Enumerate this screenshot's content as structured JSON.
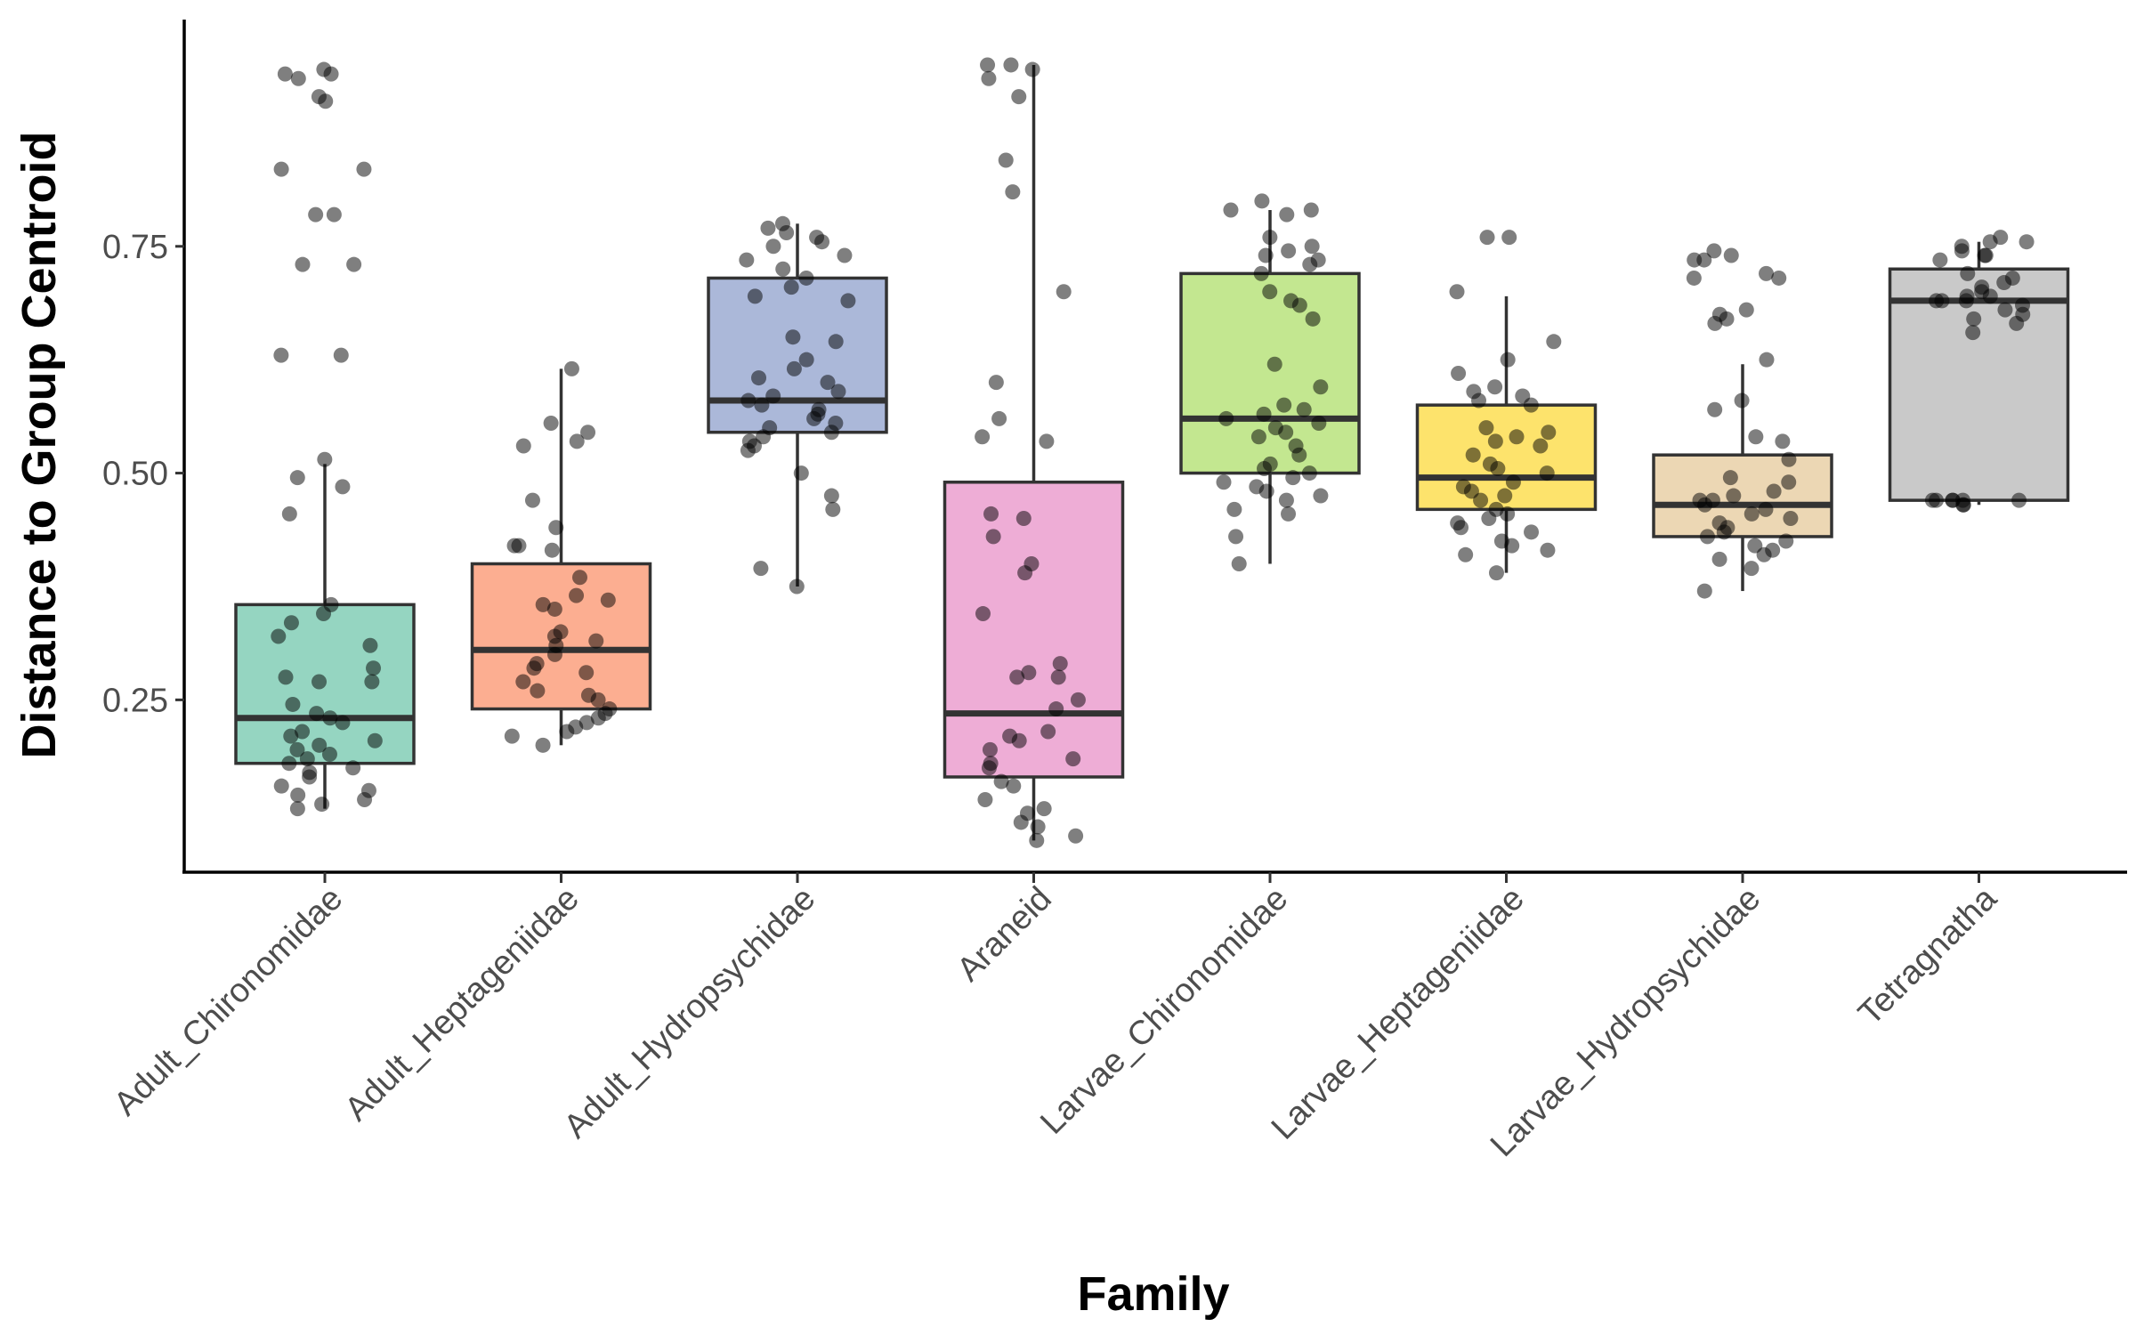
{
  "chart_data": {
    "type": "boxplot",
    "xlabel": "Family",
    "ylabel": "Distance to Group Centroid",
    "ylim": [
      0.06,
      1.0
    ],
    "yticks": [
      0.25,
      0.5,
      0.75
    ],
    "ytick_labels": [
      "0.25",
      "0.50",
      "0.75"
    ],
    "grid": false,
    "legend": "none",
    "categories": [
      "Adult_Chironomidae",
      "Adult_Heptageniidae",
      "Adult_Hydropsychidae",
      "Araneid",
      "Larvae_Chironomidae",
      "Larvae_Heptageniidae",
      "Larvae_Hydropsychidae",
      "Tetragnatha"
    ],
    "colors": [
      "#95d5c1",
      "#fcae91",
      "#abb8d9",
      "#eeadd6",
      "#c3e790",
      "#fde36c",
      "#ecd7b4",
      "#c9c9c9"
    ],
    "boxes": [
      {
        "min": 0.13,
        "q1": 0.18,
        "median": 0.23,
        "q3": 0.355,
        "max": 0.51
      },
      {
        "min": 0.2,
        "q1": 0.24,
        "median": 0.305,
        "q3": 0.4,
        "max": 0.615
      },
      {
        "min": 0.375,
        "q1": 0.545,
        "median": 0.58,
        "q3": 0.715,
        "max": 0.775
      },
      {
        "min": 0.095,
        "q1": 0.165,
        "median": 0.235,
        "q3": 0.49,
        "max": 0.95
      },
      {
        "min": 0.4,
        "q1": 0.5,
        "median": 0.56,
        "q3": 0.72,
        "max": 0.79
      },
      {
        "min": 0.39,
        "q1": 0.46,
        "median": 0.495,
        "q3": 0.575,
        "max": 0.695
      },
      {
        "min": 0.37,
        "q1": 0.43,
        "median": 0.465,
        "q3": 0.52,
        "max": 0.62
      },
      {
        "min": 0.465,
        "q1": 0.47,
        "median": 0.69,
        "q3": 0.725,
        "max": 0.755
      }
    ],
    "points": [
      [
        0.945,
        0.94,
        0.94,
        0.935,
        0.915,
        0.91,
        0.835,
        0.835,
        0.785,
        0.785,
        0.73,
        0.73,
        0.63,
        0.63,
        0.515,
        0.495,
        0.485,
        0.455,
        0.355,
        0.345,
        0.335,
        0.32,
        0.31,
        0.285,
        0.275,
        0.27,
        0.27,
        0.245,
        0.235,
        0.23,
        0.225,
        0.215,
        0.21,
        0.205,
        0.2,
        0.195,
        0.19,
        0.185,
        0.18,
        0.175,
        0.17,
        0.165,
        0.155,
        0.15,
        0.145,
        0.14,
        0.135,
        0.13
      ],
      [
        0.615,
        0.555,
        0.545,
        0.535,
        0.53,
        0.47,
        0.44,
        0.42,
        0.42,
        0.415,
        0.385,
        0.365,
        0.36,
        0.355,
        0.35,
        0.325,
        0.32,
        0.315,
        0.31,
        0.3,
        0.29,
        0.285,
        0.28,
        0.27,
        0.26,
        0.255,
        0.25,
        0.24,
        0.235,
        0.23,
        0.225,
        0.22,
        0.215,
        0.21,
        0.2
      ],
      [
        0.775,
        0.77,
        0.765,
        0.76,
        0.755,
        0.75,
        0.74,
        0.735,
        0.725,
        0.715,
        0.705,
        0.695,
        0.69,
        0.65,
        0.645,
        0.625,
        0.615,
        0.605,
        0.6,
        0.59,
        0.585,
        0.58,
        0.575,
        0.57,
        0.565,
        0.56,
        0.555,
        0.55,
        0.545,
        0.54,
        0.535,
        0.53,
        0.525,
        0.5,
        0.475,
        0.46,
        0.395,
        0.375
      ],
      [
        0.95,
        0.95,
        0.945,
        0.935,
        0.915,
        0.845,
        0.81,
        0.7,
        0.6,
        0.56,
        0.54,
        0.535,
        0.455,
        0.45,
        0.43,
        0.4,
        0.39,
        0.345,
        0.29,
        0.28,
        0.275,
        0.275,
        0.25,
        0.24,
        0.215,
        0.21,
        0.205,
        0.195,
        0.185,
        0.18,
        0.175,
        0.16,
        0.155,
        0.14,
        0.13,
        0.125,
        0.115,
        0.11,
        0.1,
        0.095
      ],
      [
        0.8,
        0.79,
        0.79,
        0.785,
        0.76,
        0.75,
        0.745,
        0.74,
        0.735,
        0.73,
        0.72,
        0.7,
        0.69,
        0.685,
        0.67,
        0.62,
        0.595,
        0.575,
        0.57,
        0.565,
        0.56,
        0.555,
        0.55,
        0.545,
        0.54,
        0.53,
        0.52,
        0.51,
        0.505,
        0.5,
        0.495,
        0.49,
        0.485,
        0.48,
        0.475,
        0.47,
        0.46,
        0.455,
        0.43,
        0.4
      ],
      [
        0.76,
        0.76,
        0.7,
        0.645,
        0.625,
        0.61,
        0.595,
        0.59,
        0.585,
        0.58,
        0.575,
        0.55,
        0.545,
        0.54,
        0.535,
        0.53,
        0.52,
        0.51,
        0.505,
        0.5,
        0.49,
        0.485,
        0.48,
        0.475,
        0.47,
        0.46,
        0.455,
        0.45,
        0.445,
        0.44,
        0.435,
        0.425,
        0.42,
        0.415,
        0.41,
        0.39
      ],
      [
        0.745,
        0.74,
        0.735,
        0.735,
        0.72,
        0.715,
        0.715,
        0.68,
        0.675,
        0.67,
        0.665,
        0.625,
        0.58,
        0.57,
        0.54,
        0.535,
        0.515,
        0.495,
        0.49,
        0.48,
        0.475,
        0.47,
        0.47,
        0.465,
        0.46,
        0.455,
        0.45,
        0.445,
        0.44,
        0.435,
        0.43,
        0.425,
        0.42,
        0.415,
        0.41,
        0.405,
        0.395,
        0.37
      ],
      [
        0.76,
        0.755,
        0.755,
        0.75,
        0.745,
        0.74,
        0.74,
        0.735,
        0.72,
        0.715,
        0.71,
        0.705,
        0.7,
        0.695,
        0.695,
        0.69,
        0.69,
        0.69,
        0.685,
        0.68,
        0.675,
        0.67,
        0.665,
        0.655,
        0.47,
        0.47,
        0.47,
        0.47,
        0.47,
        0.47,
        0.465,
        0.465
      ]
    ]
  }
}
